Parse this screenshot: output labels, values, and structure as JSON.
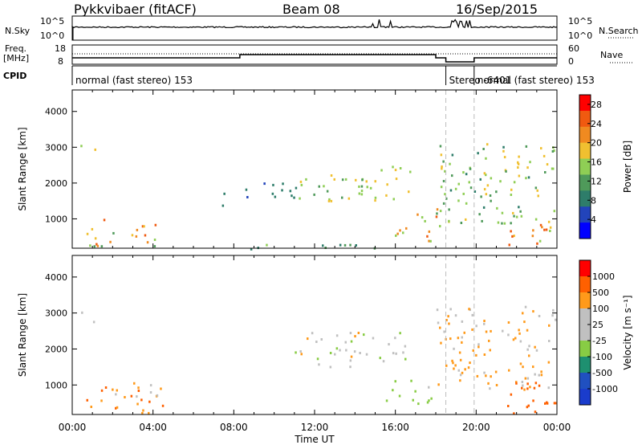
{
  "header": {
    "radar": "Pykkvibaer (fitACF)",
    "beam": "Beam 08",
    "date": "16/Sep/2015"
  },
  "status_panels": {
    "nsky_label": "N.Sky",
    "nsearch_label": "N.Search",
    "noise_ticks": [
      "10^5",
      "10^0"
    ],
    "freq_label_line1": "Freq.",
    "freq_label_line2": "[MHz]",
    "freq_ticks": [
      "18",
      "8"
    ],
    "nave_label": "Nave",
    "nave_ticks": [
      "60",
      "0"
    ],
    "cpid_label": "CPID",
    "cpid_segments": [
      {
        "label": "normal (fast stereo) 153",
        "start_hour": 0.0,
        "end_hour": 18.5
      },
      {
        "label": "Stereo -6401",
        "start_hour": 18.5,
        "end_hour": 19.9
      },
      {
        "label": "normal (fast stereo) 153",
        "start_hour": 19.9,
        "end_hour": 24.0
      }
    ]
  },
  "colors": {
    "power": [
      "#0000ff",
      "#2244bb",
      "#2e7d6a",
      "#4f9a5a",
      "#8fce55",
      "#f0c030",
      "#f08a20",
      "#f05a10",
      "#ff0000"
    ],
    "velocity": [
      "#ff0000",
      "#ff6000",
      "#ff9a1a",
      "#c0c0c0",
      "#c0c0c0",
      "#88cc44",
      "#1e9070",
      "#2050c0",
      "#1a3ccc"
    ]
  },
  "chart_data": [
    {
      "type": "heatmap",
      "panel": "power",
      "title": "",
      "xlabel": "",
      "ylabel": "Slant Range [km]",
      "colorbar_label": "Power [dB]",
      "colorbar_ticks": [
        4,
        8,
        12,
        16,
        20,
        24,
        28
      ],
      "colorbar_range": [
        0,
        30
      ],
      "x_range_hours": [
        0,
        24
      ],
      "ylim": [
        180,
        4600
      ],
      "y_ticks": [
        1000,
        2000,
        3000,
        4000
      ],
      "regions": [
        {
          "t0": 0.3,
          "t1": 1.3,
          "r0": 2700,
          "r1": 3100,
          "value": 8,
          "peak": 20
        },
        {
          "t0": 0.6,
          "t1": 4.2,
          "r0": 220,
          "r1": 1050,
          "value": 12,
          "peak": 27
        },
        {
          "t0": 4.2,
          "t1": 15.0,
          "r0": 180,
          "r1": 320,
          "value": 8,
          "peak": 16
        },
        {
          "t0": 7.0,
          "t1": 7.6,
          "r0": 1200,
          "r1": 1900,
          "value": 6,
          "peak": 10
        },
        {
          "t0": 8.5,
          "t1": 11.5,
          "r0": 1500,
          "r1": 2100,
          "value": 6,
          "peak": 10
        },
        {
          "t0": 11.0,
          "t1": 16.8,
          "r0": 1500,
          "r1": 2500,
          "value": 12,
          "peak": 20
        },
        {
          "t0": 15.8,
          "t1": 18.2,
          "r0": 400,
          "r1": 1300,
          "value": 14,
          "peak": 26
        },
        {
          "t0": 18.0,
          "t1": 24.0,
          "r0": 900,
          "r1": 3200,
          "value": 10,
          "peak": 20
        },
        {
          "t0": 21.5,
          "t1": 24.0,
          "r0": 200,
          "r1": 1000,
          "value": 14,
          "peak": 27
        }
      ]
    },
    {
      "type": "heatmap",
      "panel": "velocity",
      "title": "",
      "xlabel": "Time UT",
      "ylabel": "Slant Range [km]",
      "colorbar_label": "Velocity [m s⁻¹]",
      "colorbar_ticks": [
        1000,
        500,
        100,
        25,
        -25,
        -100,
        -500,
        -1000
      ],
      "x_ticks_labels": [
        "00:00",
        "04:00",
        "08:00",
        "12:00",
        "16:00",
        "20:00",
        "00:00"
      ],
      "x_ticks_hours": [
        0,
        4,
        8,
        12,
        16,
        20,
        24
      ],
      "ylim": [
        180,
        4600
      ],
      "y_ticks": [
        1000,
        2000,
        3000,
        4000
      ],
      "regions": [
        {
          "t0": 0.3,
          "t1": 1.3,
          "r0": 2700,
          "r1": 3100,
          "value": 0
        },
        {
          "t0": 0.5,
          "t1": 4.5,
          "r0": 250,
          "r1": 1000,
          "value": -300
        },
        {
          "t0": 2.0,
          "t1": 4.5,
          "r0": 700,
          "r1": 1100,
          "value": 0
        },
        {
          "t0": 11.0,
          "t1": 16.5,
          "r0": 1500,
          "r1": 2500,
          "value": 0
        },
        {
          "t0": 15.5,
          "t1": 18.0,
          "r0": 500,
          "r1": 1200,
          "value": 150
        },
        {
          "t0": 18.0,
          "t1": 24.0,
          "r0": 900,
          "r1": 3200,
          "value": -100
        },
        {
          "t0": 21.0,
          "t1": 24.0,
          "r0": 200,
          "r1": 1100,
          "value": -600
        }
      ]
    }
  ]
}
